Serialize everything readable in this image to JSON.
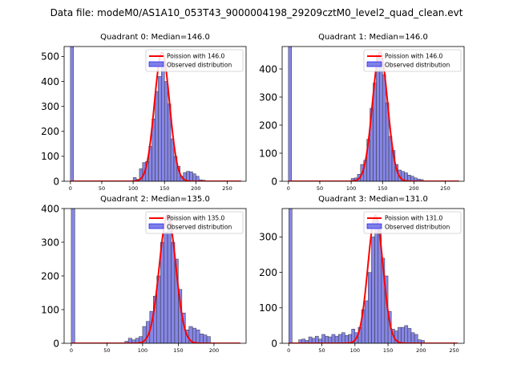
{
  "figure": {
    "suptitle": "Data file: modeM0/AS1A10_053T43_9000004198_29209cztM0_level2_quad_clean.evt",
    "colors": {
      "bar_fill": "#7f7fe6",
      "bar_edge": "#0000ff",
      "bar_outline": "#333333",
      "poisson_line": "#ff0000"
    }
  },
  "chart_data": [
    {
      "type": "bar",
      "title": "Quadrant 0: Median=146.0",
      "legend": [
        "Poission with 146.0",
        "Observed distribution"
      ],
      "legend_loc": "top-right",
      "xlim": [
        -10,
        280
      ],
      "ylim": [
        0,
        540
      ],
      "xticks": [
        0,
        50,
        100,
        150,
        200,
        250
      ],
      "yticks": [
        0,
        100,
        200,
        300,
        400,
        500
      ],
      "bin_width": 5,
      "bins": [
        [
          0,
          540
        ],
        [
          100,
          15
        ],
        [
          105,
          8
        ],
        [
          110,
          50
        ],
        [
          115,
          75
        ],
        [
          120,
          80
        ],
        [
          125,
          140
        ],
        [
          130,
          250
        ],
        [
          135,
          360
        ],
        [
          140,
          420
        ],
        [
          145,
          480
        ],
        [
          150,
          400
        ],
        [
          155,
          310
        ],
        [
          160,
          170
        ],
        [
          165,
          100
        ],
        [
          170,
          60
        ],
        [
          175,
          20
        ],
        [
          180,
          35
        ],
        [
          185,
          40
        ],
        [
          190,
          38
        ],
        [
          195,
          30
        ],
        [
          200,
          20
        ],
        [
          205,
          6
        ],
        [
          210,
          4
        ]
      ],
      "poisson": {
        "mean": 146.0,
        "peak": 515,
        "sigma": 12.1,
        "x_range": [
          0,
          272
        ]
      }
    },
    {
      "type": "bar",
      "title": "Quadrant 1: Median=146.0",
      "legend": [
        "Poission with 146.0",
        "Observed distribution"
      ],
      "legend_loc": "top-right",
      "xlim": [
        -10,
        280
      ],
      "ylim": [
        0,
        480
      ],
      "xticks": [
        0,
        50,
        100,
        150,
        200,
        250
      ],
      "yticks": [
        0,
        100,
        200,
        300,
        400
      ],
      "bin_width": 5,
      "bins": [
        [
          0,
          480
        ],
        [
          100,
          10
        ],
        [
          105,
          12
        ],
        [
          110,
          25
        ],
        [
          115,
          60
        ],
        [
          120,
          75
        ],
        [
          125,
          150
        ],
        [
          130,
          260
        ],
        [
          135,
          350
        ],
        [
          140,
          450
        ],
        [
          145,
          440
        ],
        [
          150,
          380
        ],
        [
          155,
          280
        ],
        [
          160,
          160
        ],
        [
          165,
          110
        ],
        [
          170,
          60
        ],
        [
          175,
          40
        ],
        [
          180,
          35
        ],
        [
          185,
          30
        ],
        [
          190,
          22
        ],
        [
          195,
          18
        ],
        [
          200,
          12
        ],
        [
          205,
          8
        ],
        [
          210,
          6
        ]
      ],
      "poisson": {
        "mean": 146.0,
        "peak": 460,
        "sigma": 12.1,
        "x_range": [
          0,
          272
        ]
      }
    },
    {
      "type": "bar",
      "title": "Quadrant 2: Median=135.0",
      "legend": [
        "Poission with 135.0",
        "Observed distribution"
      ],
      "legend_loc": "top-right",
      "xlim": [
        -10,
        245
      ],
      "ylim": [
        0,
        400
      ],
      "xticks": [
        0,
        50,
        100,
        150,
        200
      ],
      "yticks": [
        0,
        100,
        200,
        300,
        400
      ],
      "bin_width": 5,
      "bins": [
        [
          0,
          400
        ],
        [
          75,
          6
        ],
        [
          80,
          15
        ],
        [
          85,
          10
        ],
        [
          90,
          15
        ],
        [
          95,
          20
        ],
        [
          100,
          50
        ],
        [
          105,
          65
        ],
        [
          110,
          95
        ],
        [
          115,
          140
        ],
        [
          120,
          200
        ],
        [
          125,
          300
        ],
        [
          130,
          330
        ],
        [
          135,
          380
        ],
        [
          140,
          300
        ],
        [
          145,
          250
        ],
        [
          150,
          160
        ],
        [
          155,
          90
        ],
        [
          160,
          40
        ],
        [
          165,
          50
        ],
        [
          170,
          45
        ],
        [
          175,
          40
        ],
        [
          180,
          28
        ],
        [
          185,
          25
        ],
        [
          190,
          20
        ]
      ],
      "poisson": {
        "mean": 135.0,
        "peak": 380,
        "sigma": 11.6,
        "x_range": [
          0,
          237
        ]
      }
    },
    {
      "type": "bar",
      "title": "Quadrant 3: Median=131.0",
      "legend": [
        "Poission with 131.0",
        "Observed distribution"
      ],
      "legend_loc": "top-right",
      "xlim": [
        -10,
        265
      ],
      "ylim": [
        0,
        380
      ],
      "xticks": [
        0,
        50,
        100,
        150,
        200,
        250
      ],
      "yticks": [
        0,
        100,
        200,
        300
      ],
      "bin_width": 5,
      "bins": [
        [
          0,
          380
        ],
        [
          15,
          10
        ],
        [
          20,
          12
        ],
        [
          25,
          8
        ],
        [
          30,
          18
        ],
        [
          35,
          14
        ],
        [
          40,
          20
        ],
        [
          45,
          12
        ],
        [
          50,
          25
        ],
        [
          55,
          20
        ],
        [
          60,
          18
        ],
        [
          65,
          25
        ],
        [
          70,
          20
        ],
        [
          75,
          25
        ],
        [
          80,
          30
        ],
        [
          85,
          22
        ],
        [
          90,
          25
        ],
        [
          95,
          40
        ],
        [
          100,
          30
        ],
        [
          105,
          45
        ],
        [
          110,
          95
        ],
        [
          115,
          120
        ],
        [
          120,
          200
        ],
        [
          125,
          300
        ],
        [
          130,
          350
        ],
        [
          135,
          320
        ],
        [
          140,
          240
        ],
        [
          145,
          190
        ],
        [
          150,
          90
        ],
        [
          155,
          40
        ],
        [
          160,
          35
        ],
        [
          165,
          45
        ],
        [
          170,
          45
        ],
        [
          175,
          50
        ],
        [
          180,
          42
        ],
        [
          185,
          30
        ],
        [
          190,
          25
        ],
        [
          195,
          10
        ],
        [
          200,
          8
        ]
      ],
      "poisson": {
        "mean": 131.0,
        "peak": 360,
        "sigma": 11.4,
        "x_range": [
          0,
          255
        ]
      }
    }
  ]
}
